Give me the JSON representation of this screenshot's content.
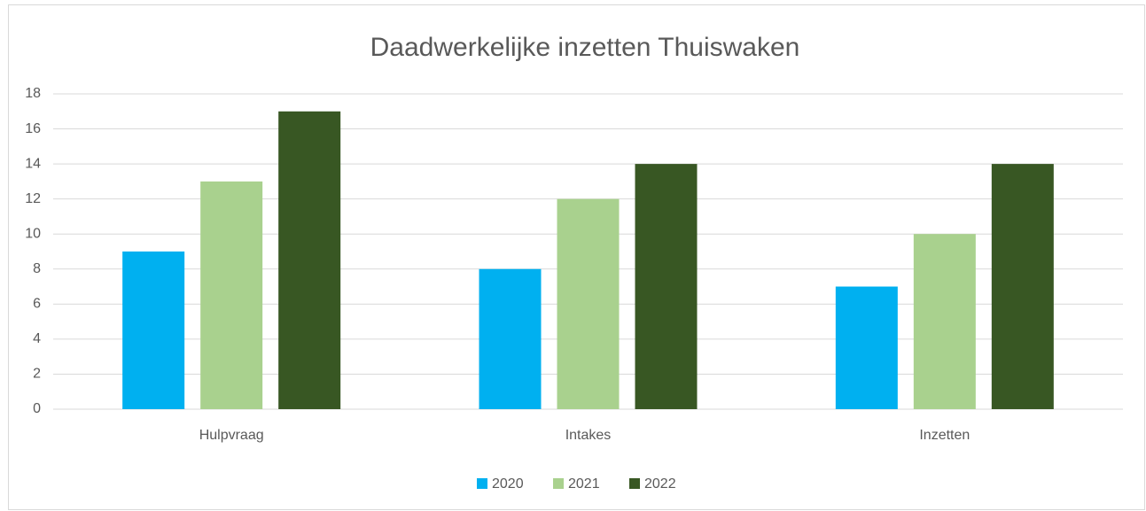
{
  "chart_data": {
    "type": "bar",
    "title": "Daadwerkelijke inzetten Thuiswaken",
    "categories": [
      "Hulpvraag",
      "Intakes",
      "Inzetten"
    ],
    "series": [
      {
        "name": "2020",
        "color": "#00b0f0",
        "values": [
          9,
          8,
          7
        ]
      },
      {
        "name": "2021",
        "color": "#a9d18e",
        "values": [
          13,
          12,
          10
        ]
      },
      {
        "name": "2022",
        "color": "#385723",
        "values": [
          17,
          14,
          14
        ]
      }
    ],
    "ylim": [
      0,
      18
    ],
    "yticks": [
      0,
      2,
      4,
      6,
      8,
      10,
      12,
      14,
      16,
      18
    ],
    "grid": true,
    "legend": "bottom"
  }
}
